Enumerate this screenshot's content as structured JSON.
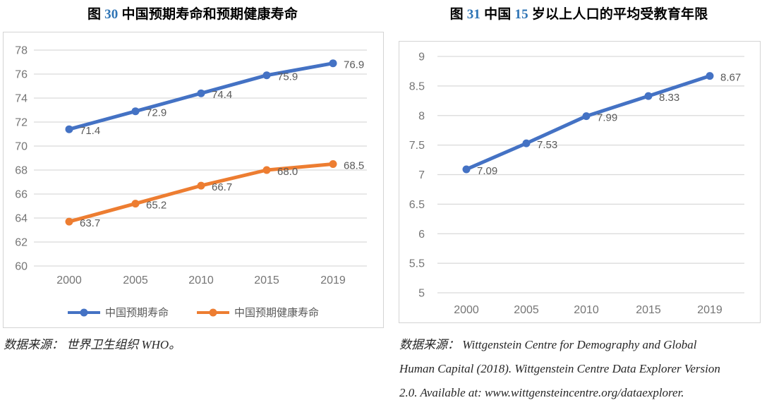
{
  "figures": {
    "left": {
      "title": {
        "prefix": "图",
        "number": "30",
        "text": "中国预期寿命和预期健康寿命"
      },
      "source_lines": [
        "数据来源：  世界卫生组织 WHO。"
      ]
    },
    "right": {
      "title": {
        "prefix": "图",
        "number": "31",
        "mid": "中国",
        "number2": "15",
        "rest": "岁以上人口的平均受教育年限"
      },
      "source_lines": [
        "数据来源：  Wittgenstein Centre for Demography and Global",
        "Human Capital (2018). Wittgenstein Centre Data Explorer Version",
        "2.0. Available at: www.wittgensteincentre.org/dataexplorer."
      ]
    }
  },
  "colors": {
    "accent_blue": "#4472C4",
    "accent_orange": "#ED7D31",
    "title_number_blue": "#2E74B5",
    "gridline": "#D9D9D9",
    "tick_text": "#757575",
    "data_label_text": "#595959"
  },
  "chart_data": [
    {
      "type": "line",
      "title": "图 30 中国预期寿命和预期健康寿命",
      "categories": [
        "2000",
        "2005",
        "2010",
        "2015",
        "2019"
      ],
      "series": [
        {
          "name": "中国预期寿命",
          "color": "#4472C4",
          "values": [
            71.4,
            72.9,
            74.4,
            75.9,
            76.9
          ],
          "labels": [
            "71.4",
            "72.9",
            "74.4",
            "75.9",
            "76.9"
          ]
        },
        {
          "name": "中国预期健康寿命",
          "color": "#ED7D31",
          "values": [
            63.7,
            65.2,
            66.7,
            68.0,
            68.5
          ],
          "labels": [
            "63.7",
            "65.2",
            "66.7",
            "68.0",
            "68.5"
          ]
        }
      ],
      "xlabel": "",
      "ylabel": "",
      "ylim": [
        60,
        78
      ],
      "ystep": 2,
      "grid": true,
      "legend_position": "bottom"
    },
    {
      "type": "line",
      "title": "图 31 中国 15 岁以上人口的平均受教育年限",
      "categories": [
        "2000",
        "2005",
        "2010",
        "2015",
        "2019"
      ],
      "series": [
        {
          "color": "#4472C4",
          "values": [
            7.09,
            7.53,
            7.99,
            8.33,
            8.67
          ],
          "labels": [
            "7.09",
            "7.53",
            "7.99",
            "8.33",
            "8.67"
          ]
        }
      ],
      "xlabel": "",
      "ylabel": "",
      "ylim": [
        5,
        9
      ],
      "ystep": 0.5,
      "grid": true,
      "legend_position": "none"
    }
  ]
}
